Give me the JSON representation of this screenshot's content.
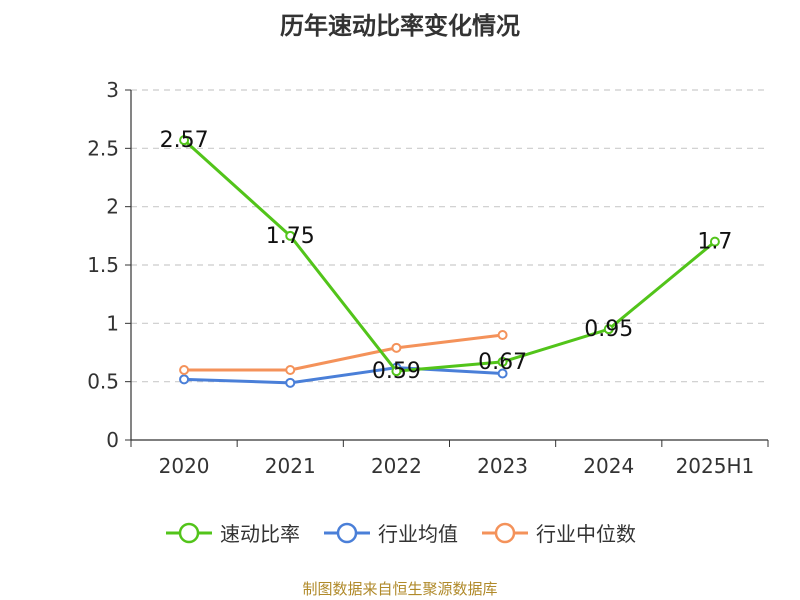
{
  "chart_data": {
    "type": "line",
    "title": "历年速动比率变化情况",
    "categories": [
      "2020",
      "2021",
      "2022",
      "2023",
      "2024",
      "2025H1"
    ],
    "ylim": [
      0,
      3
    ],
    "yticks": [
      "0",
      "0.5",
      "1",
      "1.5",
      "2",
      "2.5",
      "3"
    ],
    "grid": true,
    "legend_position": "bottom",
    "series": [
      {
        "name": "速动比率",
        "color": "#52c41a",
        "values": [
          2.57,
          1.75,
          0.59,
          0.67,
          0.95,
          1.7
        ],
        "labels": [
          "2.57",
          "1.75",
          "0.59",
          "0.67",
          "0.95",
          "1.7"
        ]
      },
      {
        "name": "行业均值",
        "color": "#4a7fd8",
        "values": [
          0.52,
          0.49,
          0.62,
          0.57,
          null,
          null
        ]
      },
      {
        "name": "行业中位数",
        "color": "#f4925a",
        "values": [
          0.6,
          0.6,
          0.79,
          0.9,
          null,
          null
        ]
      }
    ]
  },
  "footer": "制图数据来自恒生聚源数据库"
}
